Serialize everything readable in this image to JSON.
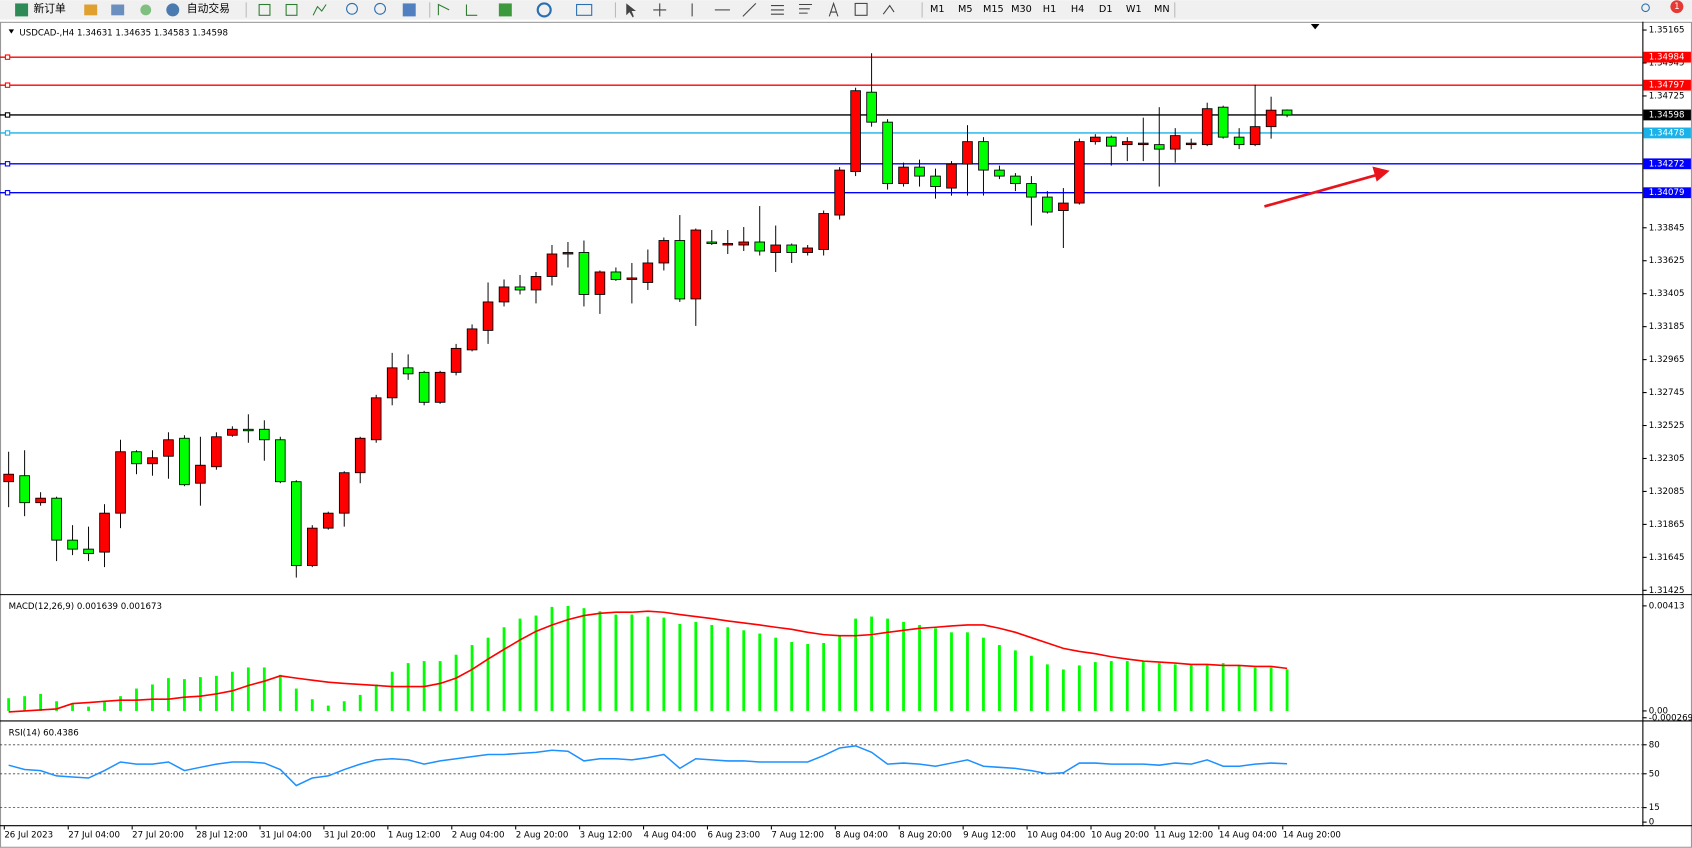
{
  "toolbar": {
    "new_order": "新订单",
    "auto_trading": "自动交易",
    "timeframes": [
      "M1",
      "M5",
      "M15",
      "M30",
      "H1",
      "H4",
      "D1",
      "W1",
      "MN"
    ],
    "badge": "1"
  },
  "chart_data": [
    {
      "type": "candlestick",
      "symbol": "USDCAD-,H4",
      "categories": [
        "26 Jul 2023",
        null,
        null,
        null,
        "27 Jul 04:00",
        null,
        null,
        null,
        "27 Jul 20:00",
        null,
        null,
        null,
        "28 Jul 12:00",
        null,
        null,
        null,
        "31 Jul 04:00",
        null,
        null,
        null,
        "31 Jul 20:00",
        null,
        null,
        null,
        "1 Aug 12:00",
        null,
        null,
        null,
        "2 Aug 04:00",
        null,
        null,
        null,
        "2 Aug 20:00",
        null,
        null,
        null,
        "3 Aug 12:00",
        null,
        null,
        null,
        "4 Aug 04:00",
        null,
        null,
        null,
        "6 Aug 23:00",
        null,
        null,
        null,
        "7 Aug 12:00",
        null,
        null,
        null,
        "8 Aug 04:00",
        null,
        null,
        null,
        "8 Aug 20:00",
        null,
        null,
        null,
        "9 Aug 12:00",
        null,
        null,
        null,
        "10 Aug 04:00",
        null,
        null,
        null,
        "10 Aug 20:00",
        null,
        null,
        null,
        "11 Aug 12:00",
        null,
        null,
        null,
        "14 Aug 04:00",
        null,
        null,
        null,
        "14 Aug 20:00"
      ],
      "open": [
        1.3215,
        1.3219,
        1.3201,
        1.3204,
        1.3176,
        1.317,
        1.3168,
        1.3194,
        1.3235,
        1.3227,
        1.3232,
        1.3244,
        1.3214,
        1.3225,
        1.3246,
        1.325,
        1.325,
        1.3243,
        1.3215,
        1.3159,
        1.3184,
        1.3194,
        1.3221,
        1.3243,
        1.3271,
        1.3291,
        1.3288,
        1.3268,
        1.3288,
        1.3303,
        1.3316,
        1.3335,
        1.3345,
        1.3343,
        1.3352,
        1.3367,
        1.3368,
        1.334,
        1.3355,
        1.335,
        1.3348,
        1.3361,
        1.3376,
        1.3337,
        1.3375,
        1.3373,
        1.3373,
        1.3375,
        1.3368,
        1.3373,
        1.3368,
        1.337,
        1.3393,
        1.3422,
        1.3475,
        1.3455,
        1.3414,
        1.3425,
        1.3419,
        1.3411,
        1.3427,
        1.3442,
        1.3423,
        1.3419,
        1.3414,
        1.3405,
        1.3396,
        1.3401,
        1.3442,
        1.3445,
        1.344,
        1.344,
        1.344,
        1.3437,
        1.344,
        1.344,
        1.3465,
        1.3445,
        1.344,
        1.3452,
        1.34631
      ],
      "high": [
        1.3235,
        1.3236,
        1.3208,
        1.3205,
        1.3186,
        1.3185,
        1.32,
        1.3243,
        1.3236,
        1.3236,
        1.3248,
        1.3246,
        1.3245,
        1.3248,
        1.3252,
        1.326,
        1.3256,
        1.3245,
        1.3216,
        1.3186,
        1.3195,
        1.3222,
        1.3245,
        1.3273,
        1.3301,
        1.33,
        1.3289,
        1.3289,
        1.3307,
        1.332,
        1.3348,
        1.335,
        1.3353,
        1.3355,
        1.3373,
        1.3375,
        1.3376,
        1.3356,
        1.3358,
        1.3361,
        1.337,
        1.3378,
        1.3393,
        1.3384,
        1.3383,
        1.3383,
        1.3385,
        1.3399,
        1.3386,
        1.3374,
        1.3373,
        1.3396,
        1.3425,
        1.3478,
        1.3501,
        1.3457,
        1.3428,
        1.343,
        1.3424,
        1.3429,
        1.3453,
        1.3445,
        1.3426,
        1.3421,
        1.3419,
        1.3409,
        1.3411,
        1.3444,
        1.3447,
        1.3446,
        1.3445,
        1.3458,
        1.3465,
        1.3451,
        1.3444,
        1.3468,
        1.3466,
        1.3451,
        1.348,
        1.3472,
        1.34635
      ],
      "low": [
        1.3198,
        1.3192,
        1.3199,
        1.3162,
        1.3166,
        1.3162,
        1.3158,
        1.3184,
        1.322,
        1.3219,
        1.3217,
        1.3212,
        1.3199,
        1.3223,
        1.3245,
        1.3241,
        1.3229,
        1.3214,
        1.3151,
        1.3158,
        1.3183,
        1.3185,
        1.3214,
        1.3241,
        1.3266,
        1.3283,
        1.3266,
        1.3267,
        1.3286,
        1.3302,
        1.3307,
        1.3332,
        1.334,
        1.3334,
        1.3346,
        1.3358,
        1.3332,
        1.3327,
        1.3349,
        1.3334,
        1.3343,
        1.3356,
        1.3335,
        1.3319,
        1.3373,
        1.3367,
        1.3369,
        1.3366,
        1.3355,
        1.3361,
        1.3366,
        1.3366,
        1.339,
        1.3419,
        1.3452,
        1.341,
        1.3412,
        1.3412,
        1.3404,
        1.3406,
        1.3406,
        1.3406,
        1.3417,
        1.3409,
        1.3386,
        1.3394,
        1.3371,
        1.34,
        1.344,
        1.3426,
        1.3429,
        1.3429,
        1.3412,
        1.3428,
        1.3437,
        1.3439,
        1.3444,
        1.3437,
        1.3439,
        1.3444,
        1.34583
      ],
      "close": [
        1.322,
        1.3201,
        1.3204,
        1.3176,
        1.317,
        1.3167,
        1.3194,
        1.3235,
        1.3227,
        1.3231,
        1.3243,
        1.3213,
        1.3226,
        1.3245,
        1.325,
        1.3249,
        1.3243,
        1.3215,
        1.3159,
        1.3184,
        1.3194,
        1.3221,
        1.3244,
        1.3271,
        1.3291,
        1.3287,
        1.3268,
        1.3288,
        1.3304,
        1.3317,
        1.3335,
        1.3345,
        1.3343,
        1.3352,
        1.3367,
        1.3368,
        1.334,
        1.3355,
        1.335,
        1.3351,
        1.3361,
        1.3376,
        1.3337,
        1.3383,
        1.3374,
        1.3374,
        1.3375,
        1.3369,
        1.3373,
        1.3368,
        1.3371,
        1.3394,
        1.3423,
        1.3476,
        1.3455,
        1.3414,
        1.3425,
        1.3419,
        1.3412,
        1.3427,
        1.3442,
        1.3423,
        1.3419,
        1.3414,
        1.3405,
        1.3395,
        1.3401,
        1.3442,
        1.3445,
        1.3439,
        1.3442,
        1.3441,
        1.3437,
        1.3446,
        1.3441,
        1.3464,
        1.3445,
        1.344,
        1.3452,
        1.3463,
        1.34598
      ],
      "up_color": "#ff0000",
      "down_color": "#00ff00",
      "ylim": [
        1.314,
        1.3522
      ],
      "yticks": [
        1.35165,
        1.34945,
        1.34725,
        1.33845,
        1.33625,
        1.33405,
        1.33185,
        1.32965,
        1.32745,
        1.32525,
        1.32305,
        1.32085,
        1.31865,
        1.31645,
        1.31425
      ],
      "hlines": [
        {
          "value": 1.34984,
          "color": "#ff0000"
        },
        {
          "value": 1.34797,
          "color": "#ff0000"
        },
        {
          "value": 1.34598,
          "color": "#000000"
        },
        {
          "value": 1.34478,
          "color": "#1ab2e8"
        },
        {
          "value": 1.34272,
          "color": "#0000ff"
        },
        {
          "value": 1.34079,
          "color": "#0000ff"
        }
      ]
    },
    {
      "type": "macd",
      "label": "MACD(12,26,9)",
      "values": [
        0.0005,
        0.00058,
        0.00067,
        0.00038,
        0.00029,
        0.00017,
        0.00038,
        0.00058,
        0.00088,
        0.00104,
        0.00129,
        0.00125,
        0.00133,
        0.00138,
        0.00154,
        0.00171,
        0.00171,
        0.00142,
        0.00088,
        0.00046,
        0.00021,
        0.00038,
        0.00063,
        0.00104,
        0.00154,
        0.00188,
        0.00196,
        0.00196,
        0.00221,
        0.00259,
        0.00288,
        0.00329,
        0.00363,
        0.00375,
        0.00409,
        0.00413,
        0.00404,
        0.00392,
        0.00379,
        0.00379,
        0.00371,
        0.00367,
        0.00342,
        0.0035,
        0.00338,
        0.00329,
        0.00317,
        0.00304,
        0.00288,
        0.00271,
        0.00263,
        0.00267,
        0.00296,
        0.00363,
        0.00371,
        0.00363,
        0.0035,
        0.00338,
        0.00325,
        0.00309,
        0.00309,
        0.00288,
        0.00259,
        0.00238,
        0.00217,
        0.00183,
        0.00163,
        0.00179,
        0.00192,
        0.00196,
        0.00196,
        0.00196,
        0.00188,
        0.00183,
        0.00183,
        0.00183,
        0.00188,
        0.00179,
        0.00171,
        0.00171,
        0.001639
      ],
      "signal": [
        -4e-05,
        0.0,
        4e-05,
        8e-05,
        0.00029,
        0.00033,
        0.00038,
        0.00042,
        0.00042,
        0.00046,
        0.00046,
        0.00054,
        0.00058,
        0.00067,
        0.00079,
        0.001,
        0.00117,
        0.00138,
        0.00129,
        0.00121,
        0.00113,
        0.00108,
        0.00104,
        0.001,
        0.00096,
        0.00096,
        0.00096,
        0.00108,
        0.00129,
        0.00163,
        0.00204,
        0.00242,
        0.00279,
        0.00313,
        0.00338,
        0.00359,
        0.00375,
        0.00384,
        0.00388,
        0.00388,
        0.00392,
        0.00388,
        0.00379,
        0.00371,
        0.00363,
        0.00354,
        0.00346,
        0.00338,
        0.00329,
        0.00321,
        0.00309,
        0.003,
        0.00296,
        0.00296,
        0.003,
        0.00309,
        0.00317,
        0.00325,
        0.00329,
        0.00334,
        0.00338,
        0.00338,
        0.00325,
        0.00309,
        0.00288,
        0.00267,
        0.00246,
        0.00234,
        0.00225,
        0.00213,
        0.00204,
        0.00196,
        0.00192,
        0.00188,
        0.00183,
        0.00183,
        0.00179,
        0.00179,
        0.00175,
        0.00175,
        0.001673
      ],
      "color": "#00ff00",
      "signal_color": "#ff0000",
      "ylim": [
        -0.00033,
        0.00451
      ],
      "yticks": [
        0.00413,
        {
          "value": 0,
          "label": "0.00"
        },
        -0.000269
      ]
    },
    {
      "type": "line",
      "label": "RSI(14)",
      "values": [
        58.9,
        54.4,
        53.3,
        47.8,
        46.7,
        45.6,
        53.3,
        62.2,
        60.0,
        60.0,
        62.2,
        53.3,
        56.7,
        60.0,
        62.2,
        62.2,
        61.1,
        54.4,
        37.8,
        45.6,
        47.8,
        54.4,
        60.0,
        64.4,
        65.6,
        64.4,
        60.0,
        63.3,
        65.6,
        67.8,
        70.0,
        70.0,
        71.1,
        72.2,
        74.4,
        73.3,
        63.3,
        65.6,
        65.6,
        64.4,
        66.7,
        70.0,
        55.6,
        65.6,
        64.4,
        63.3,
        63.3,
        62.2,
        62.2,
        62.2,
        62.2,
        68.9,
        76.7,
        78.9,
        72.2,
        60.0,
        61.1,
        60.0,
        57.8,
        61.1,
        64.4,
        57.8,
        56.7,
        55.6,
        53.3,
        50.0,
        51.1,
        61.1,
        61.1,
        60.0,
        60.0,
        60.0,
        58.9,
        61.1,
        60.0,
        64.4,
        57.8,
        57.8,
        60.0,
        61.1,
        60.4386
      ],
      "color": "#1e90ff",
      "levels": [
        80,
        50,
        15
      ],
      "ylim": [
        -2,
        103
      ],
      "yticks": [
        80,
        50,
        15,
        0
      ]
    }
  ]
}
